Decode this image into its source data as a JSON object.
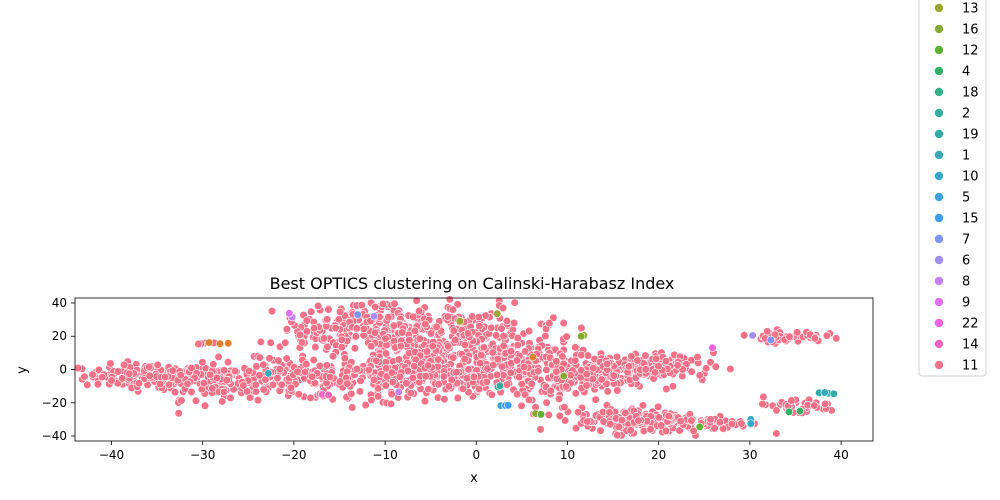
{
  "chart_data": {
    "type": "scatter",
    "title": "Best OPTICS clustering on Calinski-Harabasz Index",
    "xlabel": "x",
    "ylabel": "y",
    "xlim": [
      -44,
      43.5
    ],
    "ylim": [
      -43,
      43
    ],
    "xticks": [
      -40,
      -30,
      -20,
      -10,
      0,
      10,
      20,
      30,
      40
    ],
    "yticks": [
      -40,
      -20,
      0,
      20,
      40
    ],
    "grid": false,
    "legend_position": "right-outside",
    "legend": [
      {
        "label": "13",
        "color": "#9da731"
      },
      {
        "label": "16",
        "color": "#86aa31"
      },
      {
        "label": "12",
        "color": "#5eb031"
      },
      {
        "label": "4",
        "color": "#32b166"
      },
      {
        "label": "18",
        "color": "#34af89"
      },
      {
        "label": "2",
        "color": "#35ad9c"
      },
      {
        "label": "19",
        "color": "#36abab"
      },
      {
        "label": "1",
        "color": "#38a9b8"
      },
      {
        "label": "10",
        "color": "#39a7c6"
      },
      {
        "label": "5",
        "color": "#3ba3d9"
      },
      {
        "label": "15",
        "color": "#3d9cf2"
      },
      {
        "label": "7",
        "color": "#7d94f4"
      },
      {
        "label": "6",
        "color": "#a38cf4"
      },
      {
        "label": "8",
        "color": "#c481f4"
      },
      {
        "label": "9",
        "color": "#e171f1"
      },
      {
        "label": "22",
        "color": "#f561dd"
      },
      {
        "label": "14",
        "color": "#f667bc"
      },
      {
        "label": "11",
        "color": "#f67088"
      }
    ],
    "main_cluster": {
      "label": "11",
      "color": "#f67088",
      "regions": [
        {
          "cx": -36,
          "cy": -4,
          "sx": 3.5,
          "sy": 3.5,
          "n": 130
        },
        {
          "cx": -28,
          "cy": -6,
          "sx": 4.5,
          "sy": 6,
          "n": 160
        },
        {
          "cx": -20,
          "cy": -6,
          "sx": 3.5,
          "sy": 6,
          "n": 110
        },
        {
          "cx": -17,
          "cy": 22,
          "sx": 2.5,
          "sy": 6,
          "n": 60
        },
        {
          "cx": -11,
          "cy": 28,
          "sx": 4,
          "sy": 7,
          "n": 130
        },
        {
          "cx": -6,
          "cy": 14,
          "sx": 4.5,
          "sy": 10,
          "n": 240
        },
        {
          "cx": 0,
          "cy": 22,
          "sx": 3,
          "sy": 9,
          "n": 90
        },
        {
          "cx": -12,
          "cy": -4,
          "sx": 3.5,
          "sy": 6,
          "n": 90
        },
        {
          "cx": -3,
          "cy": -6,
          "sx": 5,
          "sy": 5,
          "n": 160
        },
        {
          "cx": 5,
          "cy": 2,
          "sx": 4,
          "sy": 10,
          "n": 140
        },
        {
          "cx": 9,
          "cy": -6,
          "sx": 3,
          "sy": 10,
          "n": 90
        },
        {
          "cx": 15,
          "cy": -1,
          "sx": 3.5,
          "sy": 5,
          "n": 140
        },
        {
          "cx": 20,
          "cy": 2,
          "sx": 3,
          "sy": 4,
          "n": 70
        },
        {
          "cx": 17,
          "cy": -30,
          "sx": 3,
          "sy": 4,
          "n": 120
        },
        {
          "cx": 23,
          "cy": -32,
          "sx": 3.5,
          "sy": 3,
          "n": 110
        },
        {
          "cx": 34,
          "cy": 20,
          "sx": 2,
          "sy": 1.6,
          "n": 60
        },
        {
          "cx": 35,
          "cy": -22,
          "sx": 2.5,
          "sy": 2.5,
          "n": 40
        },
        {
          "cx": -30,
          "cy": 16,
          "sx": 0.6,
          "sy": 0.6,
          "n": 5
        },
        {
          "cx": 7,
          "cy": 26,
          "sx": 0.8,
          "sy": 1.2,
          "n": 6
        }
      ]
    },
    "points": [
      {
        "label": "13",
        "x": 2.3,
        "y": 33.5
      },
      {
        "label": "13",
        "x": -1.8,
        "y": 29
      },
      {
        "label": "13",
        "x": 11.8,
        "y": 20.5
      },
      {
        "label": "16",
        "x": 11.5,
        "y": 20
      },
      {
        "label": "16",
        "x": 6.5,
        "y": -26.5
      },
      {
        "label": "16",
        "x": 9.6,
        "y": -4
      },
      {
        "label": "12",
        "x": 7.1,
        "y": -27
      },
      {
        "label": "12",
        "x": 24.5,
        "y": -34.5
      },
      {
        "label": "4",
        "x": 34.3,
        "y": -25.5
      },
      {
        "label": "4",
        "x": 35.5,
        "y": -25
      },
      {
        "label": "18",
        "x": 2.4,
        "y": -10.5
      },
      {
        "label": "2",
        "x": 2.6,
        "y": -9.8
      },
      {
        "label": "19",
        "x": 37.6,
        "y": -14
      },
      {
        "label": "19",
        "x": 38.6,
        "y": -14.3
      },
      {
        "label": "19",
        "x": 39.2,
        "y": -14.6
      },
      {
        "label": "1",
        "x": 38.2,
        "y": -13.8
      },
      {
        "label": "1",
        "x": -22.8,
        "y": -2.3
      },
      {
        "label": "10",
        "x": 30.1,
        "y": -30
      },
      {
        "label": "10",
        "x": 30.1,
        "y": -33
      },
      {
        "label": "10",
        "x": 30.1,
        "y": -32.5
      },
      {
        "label": "5",
        "x": 2.7,
        "y": -21.7
      },
      {
        "label": "15",
        "x": 3.2,
        "y": -21.7
      },
      {
        "label": "15",
        "x": 3.5,
        "y": -21.5
      },
      {
        "label": "7",
        "x": -13,
        "y": 33
      },
      {
        "label": "7",
        "x": 32.3,
        "y": 17.8
      },
      {
        "label": "6",
        "x": -11.2,
        "y": 32
      },
      {
        "label": "6",
        "x": 30.3,
        "y": 20.5
      },
      {
        "label": "8",
        "x": -20.2,
        "y": 31.5
      },
      {
        "label": "8",
        "x": -8.5,
        "y": -13.5
      },
      {
        "label": "9",
        "x": -20.5,
        "y": 33.8
      },
      {
        "label": "22",
        "x": 25.9,
        "y": 13
      },
      {
        "label": "14",
        "x": -16.9,
        "y": -15
      },
      {
        "label": "14",
        "x": -16.2,
        "y": -15.3
      },
      {
        "label": "orange",
        "x": -28.1,
        "y": 15.5
      },
      {
        "label": "orange",
        "x": -27.2,
        "y": 15.8
      },
      {
        "label": "orange",
        "x": -29.3,
        "y": 16.2
      },
      {
        "label": "orange",
        "x": 6.2,
        "y": 7.5
      }
    ],
    "extra_colors": {
      "orange": "#e0802d"
    }
  }
}
